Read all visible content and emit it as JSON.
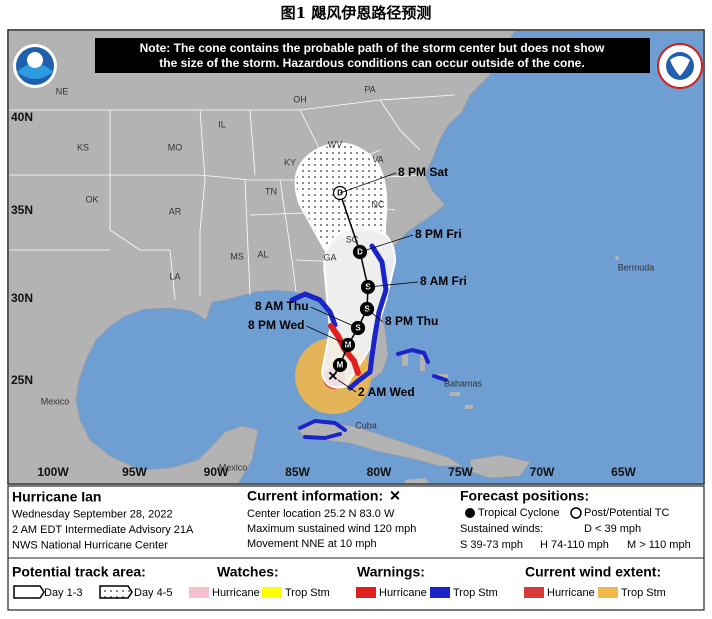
{
  "title": "图1  飓风伊恩路径预测",
  "map": {
    "note": [
      "Note: The cone contains the probable path of the storm center but does not show",
      "the size of the storm. Hazardous conditions can occur outside of the cone."
    ],
    "lat_labels": [
      "40N",
      "35N",
      "30N",
      "25N"
    ],
    "lon_labels": [
      "100W",
      "95W",
      "90W",
      "85W",
      "80W",
      "75W",
      "70W",
      "65W"
    ],
    "place_labels": [
      "NE",
      "KS",
      "MO",
      "IL",
      "OH",
      "PA",
      "WV",
      "VA",
      "KY",
      "TN",
      "NC",
      "SC",
      "GA",
      "AL",
      "MS",
      "AR",
      "OK",
      "LA",
      "Mexico",
      "Mexico",
      "Cuba",
      "Bahamas",
      "Bermuda"
    ],
    "current_position": {
      "symbol": "✕",
      "label": "2 AM Wed"
    },
    "forecast_points": [
      {
        "symbol": "M",
        "filled": true
      },
      {
        "symbol": "M",
        "filled": true,
        "label": "8 PM Wed"
      },
      {
        "symbol": "S",
        "filled": true,
        "label": "8 AM Thu"
      },
      {
        "symbol": "S",
        "filled": true,
        "label": "8 PM Thu"
      },
      {
        "symbol": "S",
        "filled": true,
        "label": "8 AM Fri"
      },
      {
        "symbol": "D",
        "filled": true,
        "label": "8 PM Fri"
      },
      {
        "symbol": "D",
        "filled": false,
        "label": "8 PM Sat"
      }
    ]
  },
  "legend": {
    "storm": [
      "Hurricane Ian",
      "Wednesday September 28, 2022",
      "2 AM EDT Intermediate Advisory 21A",
      "NWS National Hurricane Center"
    ],
    "current_info": {
      "heading": "Current information:",
      "symbol": "✕",
      "lines": [
        "Center location 25.2 N 83.0 W",
        "Maximum sustained wind 120 mph",
        "Movement NNE at 10 mph"
      ]
    },
    "forecast": {
      "heading": "Forecast positions:",
      "tropical": "Tropical Cyclone",
      "post": "Post/Potential TC",
      "winds_heading": "Sustained winds:",
      "winds": [
        "D < 39 mph",
        "S 39-73 mph",
        "H 74-110 mph",
        "M > 110 mph"
      ]
    },
    "track_area": {
      "heading": "Potential track area:",
      "items": [
        "Day 1-3",
        "Day 4-5"
      ]
    },
    "watches": {
      "heading": "Watches:",
      "items": [
        {
          "label": "Hurricane",
          "color": "#f7c0cf"
        },
        {
          "label": "Trop Stm",
          "color": "#ffff00"
        }
      ]
    },
    "warnings": {
      "heading": "Warnings:",
      "items": [
        {
          "label": "Hurricane",
          "color": "#e02020"
        },
        {
          "label": "Trop Stm",
          "color": "#1a24c8"
        }
      ]
    },
    "wind_extent": {
      "heading": "Current wind extent:",
      "items": [
        {
          "label": "Hurricane",
          "color": "#d83a3a"
        },
        {
          "label": "Trop Stm",
          "color": "#f0b74a"
        }
      ]
    }
  }
}
